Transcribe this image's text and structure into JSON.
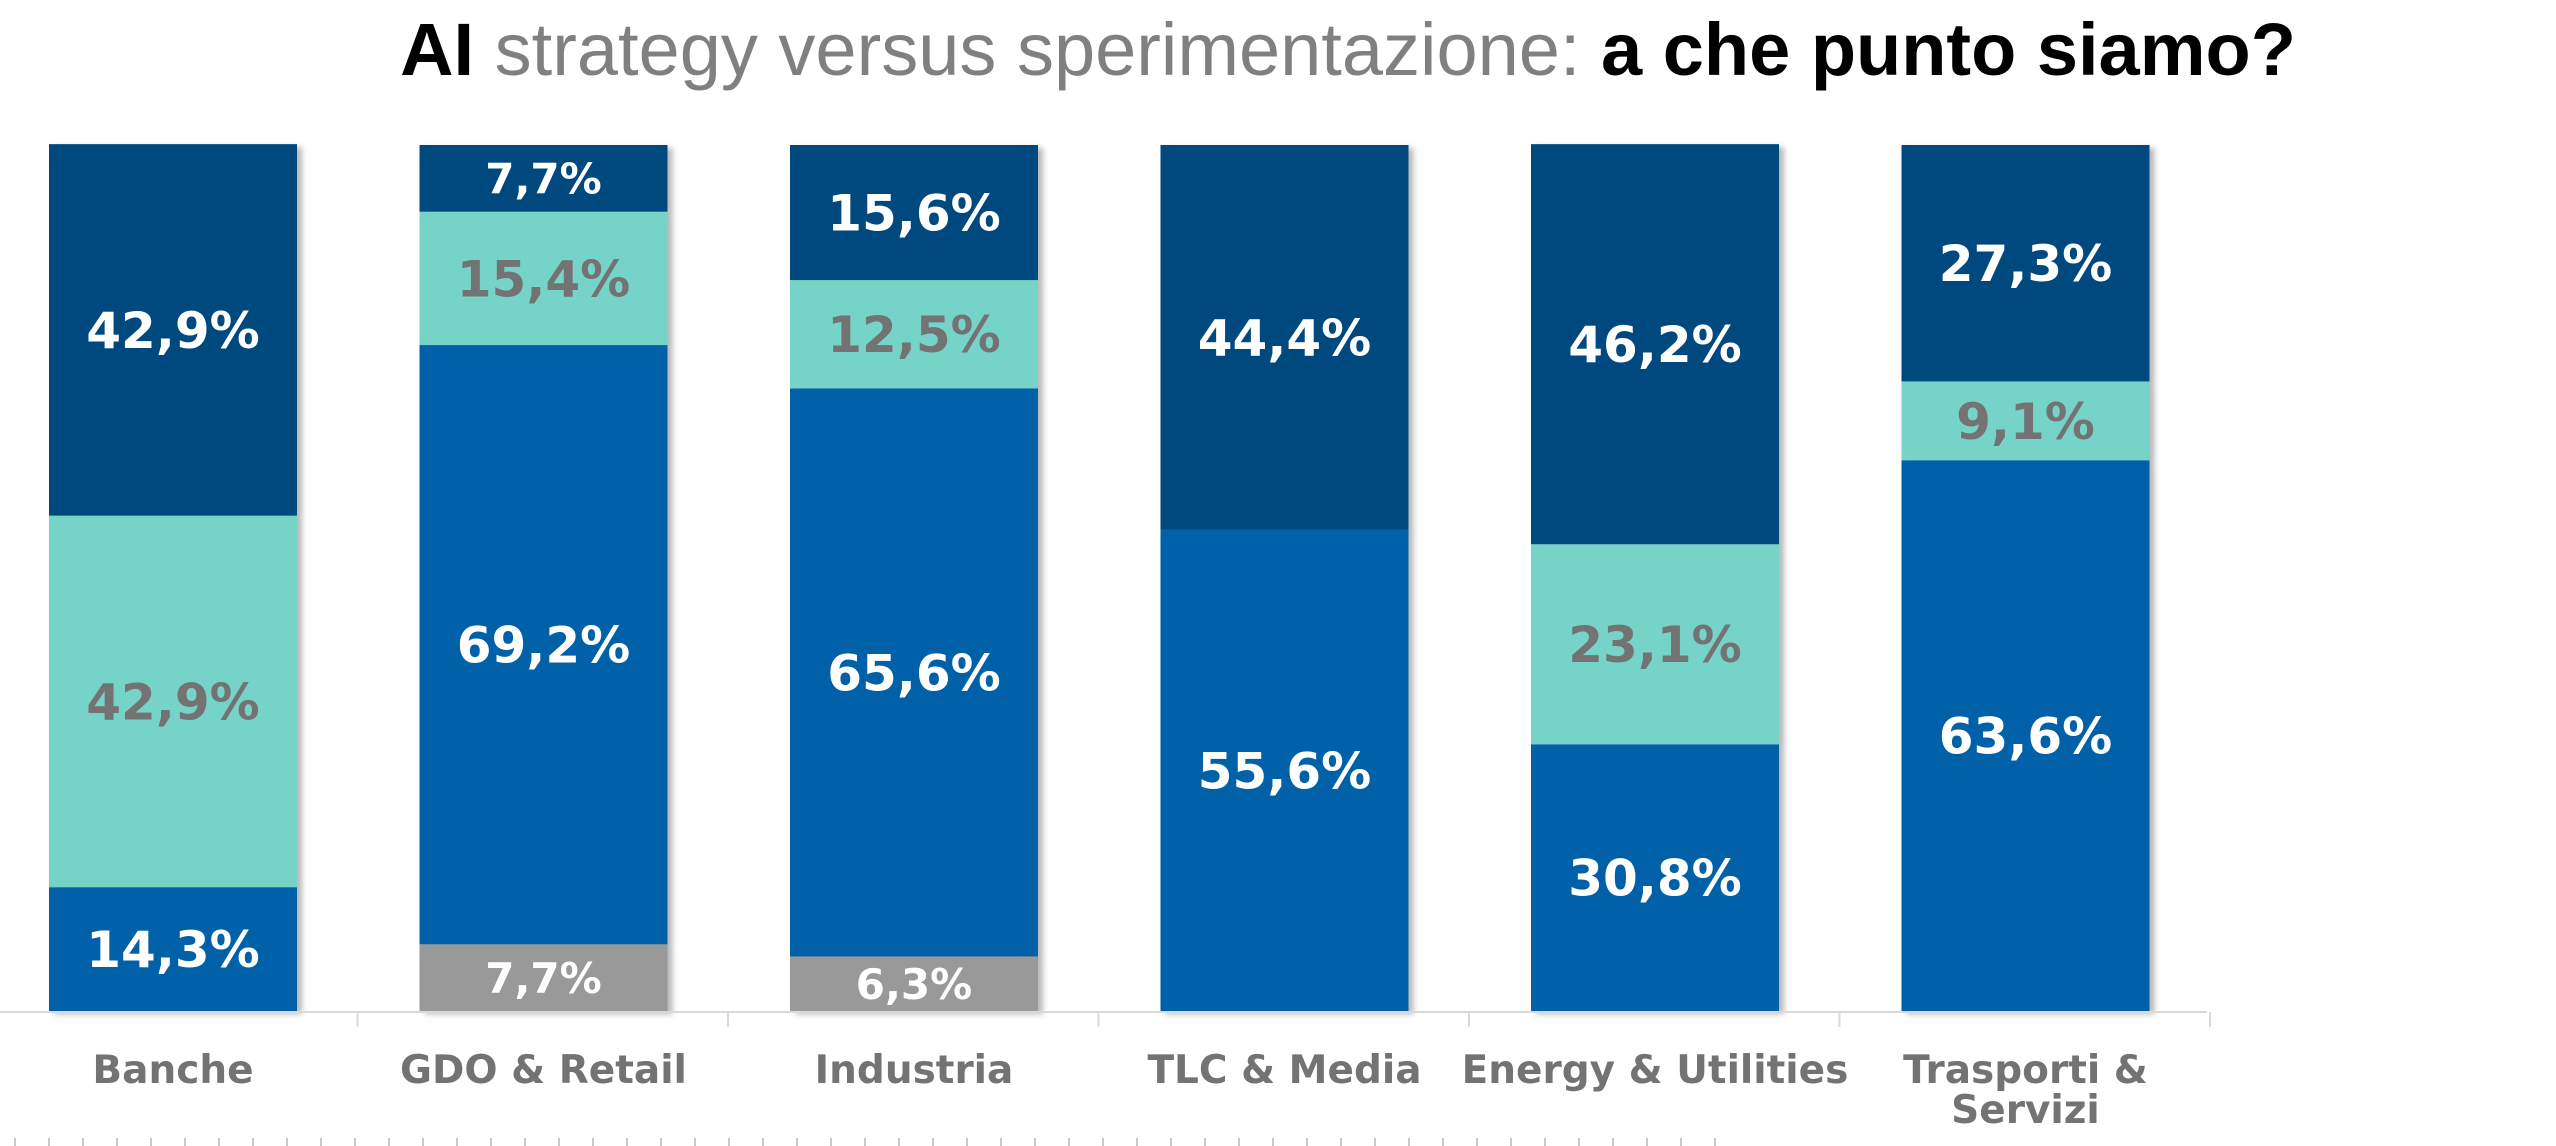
{
  "title": {
    "part1": "AI",
    "part2": " strategy versus sperimentazione: ",
    "part3": "a che punto siamo?"
  },
  "colors": {
    "navy": "#02497F",
    "blue": "#0061A8",
    "teal": "#76D3C7",
    "gray": "#999999",
    "label_on_dark": "#FFFFFF",
    "label_on_teal": "#737373",
    "axis_text": "#737373",
    "axis_line": "#D9D9D9"
  },
  "chart_data": {
    "type": "bar",
    "stacked": true,
    "orientation": "vertical",
    "title": "AI strategy versus sperimentazione: a che punto siamo?",
    "xlabel": "",
    "ylabel": "",
    "ylim": [
      0,
      100
    ],
    "grid": false,
    "legend": "none",
    "categories": [
      "Banche",
      "GDO & Retail",
      "Industria",
      "TLC & Media",
      "Energy & Utilities",
      "Trasporti & Servizi"
    ],
    "category_lines": [
      [
        "Banche"
      ],
      [
        "GDO & Retail"
      ],
      [
        "Industria"
      ],
      [
        "TLC & Media"
      ],
      [
        "Energy & Utilities"
      ],
      [
        "Trasporti &",
        "Servizi"
      ]
    ],
    "series": [
      {
        "name": "gray",
        "color": "#999999",
        "label_color": "#FFFFFF",
        "values": [
          0,
          7.7,
          6.3,
          0,
          0,
          0
        ],
        "labels": [
          "",
          "7,7%",
          "6,3%",
          "",
          "",
          ""
        ]
      },
      {
        "name": "blue",
        "color": "#0061A8",
        "label_color": "#FFFFFF",
        "values": [
          14.3,
          69.2,
          65.6,
          55.6,
          30.8,
          63.6
        ],
        "labels": [
          "14,3%",
          "69,2%",
          "65,6%",
          "55,6%",
          "30,8%",
          "63,6%"
        ]
      },
      {
        "name": "teal",
        "color": "#76D3C7",
        "label_color": "#737373",
        "values": [
          42.9,
          15.4,
          12.5,
          0,
          23.1,
          9.1
        ],
        "labels": [
          "42,9%",
          "15,4%",
          "12,5%",
          "",
          "23,1%",
          "9,1%"
        ]
      },
      {
        "name": "navy",
        "color": "#02497F",
        "label_color": "#FFFFFF",
        "values": [
          42.9,
          7.7,
          15.6,
          44.4,
          46.2,
          27.3
        ],
        "labels": [
          "42,9%",
          "7,7%",
          "15,6%",
          "44,4%",
          "46,2%",
          "27,3%"
        ]
      }
    ]
  }
}
